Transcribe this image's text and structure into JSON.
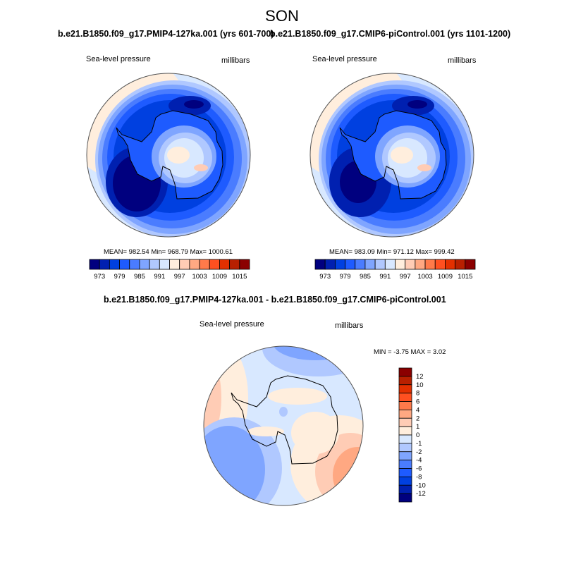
{
  "title": "SON",
  "panels": [
    {
      "title": "b.e21.B1850.f09_g17.PMIP4-127ka.001 (yrs 601-700)",
      "left_label": "Sea-level pressure",
      "right_label": "millibars",
      "stats": "MEAN= 982.54  Min= 968.79  Max= 1000.61"
    },
    {
      "title": "b.e21.B1850.f09_g17.CMIP6-piControl.001 (yrs 1101-1200)",
      "left_label": "Sea-level pressure",
      "right_label": "millibars",
      "stats": "MEAN= 983.09  Min= 971.12  Max= 999.42"
    },
    {
      "title": "b.e21.B1850.f09_g17.PMIP4-127ka.001 - b.e21.B1850.f09_g17.CMIP6-piControl.001",
      "left_label": "Sea-level pressure",
      "right_label": "millibars",
      "stats": "MIN =  -3.75 MAX =   3.02"
    }
  ],
  "colorbar_abs": {
    "labels": [
      "973",
      "979",
      "985",
      "991",
      "997",
      "1003",
      "1009",
      "1015"
    ]
  },
  "colorbar_diff": {
    "labels": [
      "12",
      "10",
      "8",
      "6",
      "4",
      "2",
      "1",
      "0",
      "-1",
      "-2",
      "-4",
      "-6",
      "-8",
      "-10",
      "-12"
    ]
  },
  "palette": [
    "#00007f",
    "#0020b0",
    "#0040e0",
    "#1e5bff",
    "#4a7cff",
    "#7fa5ff",
    "#b0c8ff",
    "#d8e8ff",
    "#ffeedd",
    "#ffccb5",
    "#ffa882",
    "#ff7a4a",
    "#ff5020",
    "#e33000",
    "#b82000",
    "#8b0000"
  ]
}
